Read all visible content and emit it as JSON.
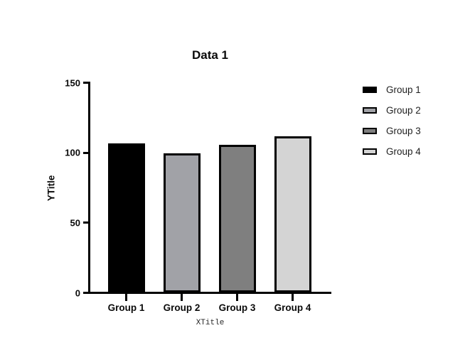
{
  "chart_data": {
    "type": "bar",
    "title": "Data 1",
    "xlabel": "XTitle",
    "ylabel": "YTitle",
    "categories": [
      "Group 1",
      "Group 2",
      "Group 3",
      "Group 4"
    ],
    "values": [
      106,
      99,
      105,
      111
    ],
    "bar_colors": [
      "#000000",
      "#a1a2a7",
      "#7f7f7f",
      "#d4d4d4"
    ],
    "bar_border_color": "#000000",
    "axis_color": "#000000",
    "yticks": [
      0,
      50,
      100,
      150
    ],
    "ylim": [
      0,
      150
    ],
    "grid": false,
    "legend": {
      "position": "right",
      "entries": [
        {
          "label": "Group 1",
          "color": "#000000"
        },
        {
          "label": "Group 2",
          "color": "#a1a2a7"
        },
        {
          "label": "Group 3",
          "color": "#7f7f7f"
        },
        {
          "label": "Group 4",
          "color": "#d4d4d4"
        }
      ]
    }
  }
}
